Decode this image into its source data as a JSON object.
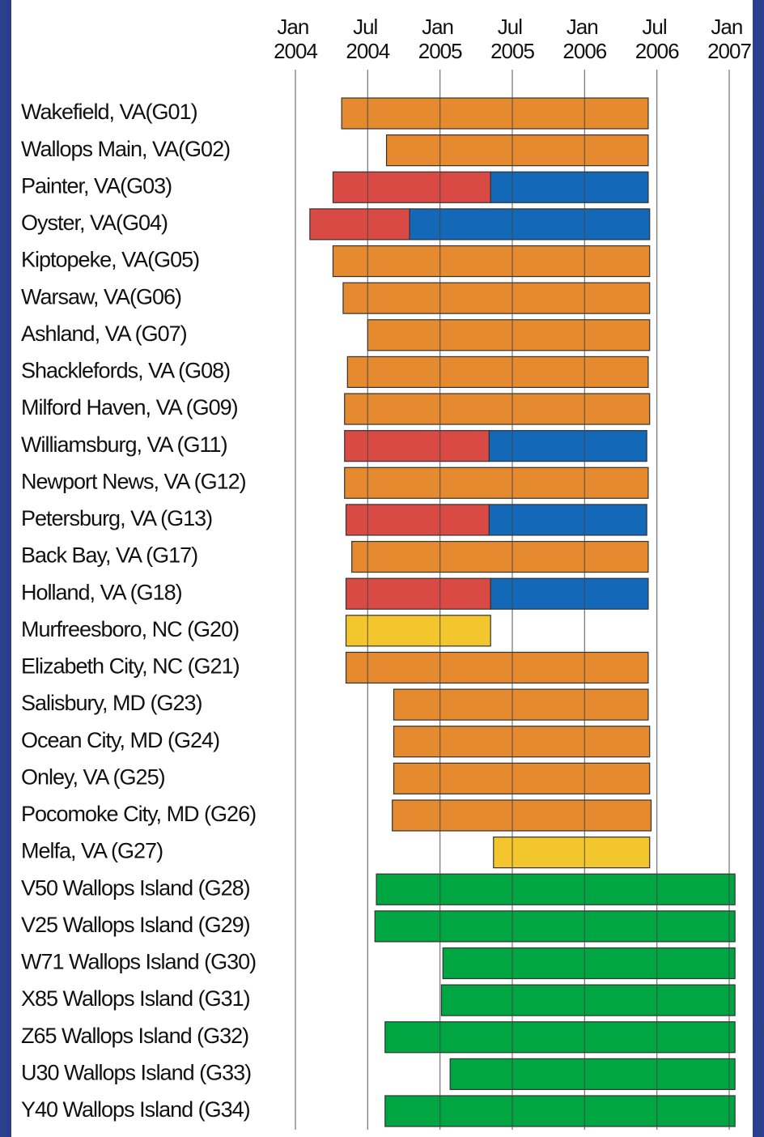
{
  "chart_data": {
    "type": "gantt",
    "categories": [
      "Wakefield, VA(G01)",
      "Wallops Main, VA(G02)",
      "Painter, VA(G03)",
      "Oyster, VA(G04)",
      "Kiptopeke, VA(G05)",
      "Warsaw, VA(G06)",
      "Ashland, VA (G07)",
      "Shacklefords, VA (G08)",
      "Milford Haven, VA (G09)",
      "Williamsburg, VA (G11)",
      "Newport News, VA (G12)",
      "Petersburg, VA (G13)",
      "Back Bay, VA (G17)",
      "Holland, VA (G18)",
      "Murfreesboro, NC (G20)",
      "Elizabeth City, NC (G21)",
      "Salisbury, MD (G23)",
      "Ocean City, MD (G24)",
      "Onley, VA (G25)",
      "Pocomoke City, MD (G26)",
      "Melfa, VA (G27)",
      "V50 Wallops Island (G28)",
      "V25 Wallops Island (G29)",
      "W71 Wallops Island (G30)",
      "X85 Wallops Island (G31)",
      "Z65 Wallops Island (G32)",
      "U30 Wallops Island (G33)",
      "Y40 Wallops Island (G34)"
    ],
    "xlim": [
      2004,
      2007
    ],
    "xticks": [
      {
        "value": 2004,
        "label": "Jan 2004"
      },
      {
        "value": 2004.5,
        "label": "Jul 2004"
      },
      {
        "value": 2005,
        "label": "Jan 2005"
      },
      {
        "value": 2005.5,
        "label": "Jul 2005"
      },
      {
        "value": 2006,
        "label": "Jan 2006"
      },
      {
        "value": 2006.5,
        "label": "Jul 2006"
      },
      {
        "value": 2007,
        "label": "Jan 2007"
      }
    ],
    "grid": true,
    "series": [
      {
        "color": "#e58a2e",
        "values": [
          [
            2004.32,
            2006.44
          ],
          [
            2004.63,
            2006.44
          ],
          null,
          null,
          [
            2004.26,
            2006.45
          ],
          [
            2004.33,
            2006.45
          ],
          [
            2004.5,
            2006.45
          ],
          [
            2004.36,
            2006.44
          ],
          [
            2004.34,
            2006.45
          ],
          null,
          [
            2004.34,
            2006.44
          ],
          null,
          [
            2004.39,
            2006.44
          ],
          null,
          null,
          [
            2004.35,
            2006.44
          ],
          [
            2004.68,
            2006.44
          ],
          [
            2004.68,
            2006.45
          ],
          [
            2004.68,
            2006.45
          ],
          [
            2004.67,
            2006.46
          ],
          null,
          null,
          null,
          null,
          null,
          null,
          null,
          null
        ]
      },
      {
        "color": "#d94a44",
        "values": [
          null,
          null,
          [
            2004.26,
            2005.35
          ],
          [
            2004.1,
            2004.79
          ],
          null,
          null,
          null,
          null,
          null,
          [
            2004.34,
            2005.34
          ],
          null,
          [
            2004.35,
            2005.34
          ],
          null,
          [
            2004.35,
            2005.35
          ],
          null,
          null,
          null,
          null,
          null,
          null,
          null,
          null,
          null,
          null,
          null,
          null,
          null,
          null
        ]
      },
      {
        "color": "#1468b8",
        "values": [
          null,
          null,
          [
            2005.35,
            2006.44
          ],
          [
            2004.79,
            2006.45
          ],
          null,
          null,
          null,
          null,
          null,
          [
            2005.34,
            2006.43
          ],
          null,
          [
            2005.34,
            2006.43
          ],
          null,
          [
            2005.35,
            2006.44
          ],
          null,
          null,
          null,
          null,
          null,
          null,
          null,
          null,
          null,
          null,
          null,
          null,
          null,
          null
        ]
      },
      {
        "color": "#f2c62c",
        "values": [
          null,
          null,
          null,
          null,
          null,
          null,
          null,
          null,
          null,
          null,
          null,
          null,
          null,
          null,
          [
            2004.35,
            2005.35
          ],
          null,
          null,
          null,
          null,
          null,
          [
            2005.37,
            2006.45
          ],
          null,
          null,
          null,
          null,
          null,
          null,
          null
        ]
      },
      {
        "color": "#00a641",
        "values": [
          null,
          null,
          null,
          null,
          null,
          null,
          null,
          null,
          null,
          null,
          null,
          null,
          null,
          null,
          null,
          null,
          null,
          null,
          null,
          null,
          null,
          [
            2004.56,
            2007.04
          ],
          [
            2004.55,
            2007.04
          ],
          [
            2005.02,
            2007.04
          ],
          [
            2005.01,
            2007.04
          ],
          [
            2004.62,
            2007.04
          ],
          [
            2005.07,
            2007.04
          ],
          [
            2004.62,
            2007.04
          ]
        ]
      }
    ]
  }
}
